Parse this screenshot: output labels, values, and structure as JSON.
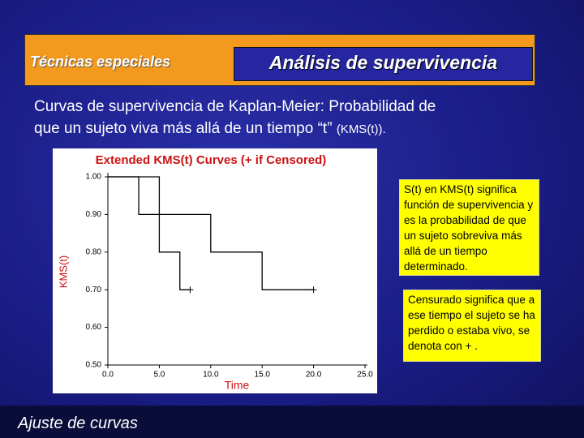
{
  "header": {
    "section": "Técnicas especiales",
    "title": "Análisis de supervivencia"
  },
  "body": {
    "lines": [
      "Curvas de supervivencia de Kaplan-Meier: Probabilidad de",
      "que un sujeto viva más allá de un tiempo “t”",
      "(KMS(t))."
    ]
  },
  "chart_data": {
    "type": "step",
    "title": "Extended KMS(t) Curves (+ if Censored)",
    "x_label": "Time",
    "y_label": "KMS(t)",
    "xlim": [
      0,
      25
    ],
    "ylim": [
      0.5,
      1.0
    ],
    "xticks": [
      {
        "value": 0,
        "label": "0.0"
      },
      {
        "value": 5,
        "label": "5.0"
      },
      {
        "value": 10,
        "label": "10.0"
      },
      {
        "value": 15,
        "label": "15.0"
      },
      {
        "value": 20,
        "label": "20.0"
      },
      {
        "value": 25,
        "label": "25.0"
      }
    ],
    "yticks": [
      {
        "value": 1.0,
        "label": "1.00"
      },
      {
        "value": 0.9,
        "label": "0.90"
      },
      {
        "value": 0.8,
        "label": "0.80"
      },
      {
        "value": 0.7,
        "label": "0.70"
      },
      {
        "value": 0.6,
        "label": "0.60"
      },
      {
        "value": 0.5,
        "label": "0.50"
      }
    ],
    "series": [
      {
        "color": "#000000",
        "x": [
          0,
          3,
          10,
          15,
          20
        ],
        "values": [
          1.0,
          0.9,
          0.8,
          0.7,
          0.7
        ]
      },
      {
        "color": "#000000",
        "x": [
          0,
          5,
          7,
          8
        ],
        "values": [
          1.0,
          0.8,
          0.7,
          0.7
        ]
      }
    ]
  },
  "notes": [
    "S(t) en KMS(t) significa función de supervivencia y es la probabilidad de que un sujeto sobreviva más allá de un tiempo determinado.",
    "Censurado significa que a ese tiempo el sujeto se ha perdido o estaba vivo, se denota con + ."
  ],
  "footer": {
    "label": "Ajuste de curvas"
  }
}
